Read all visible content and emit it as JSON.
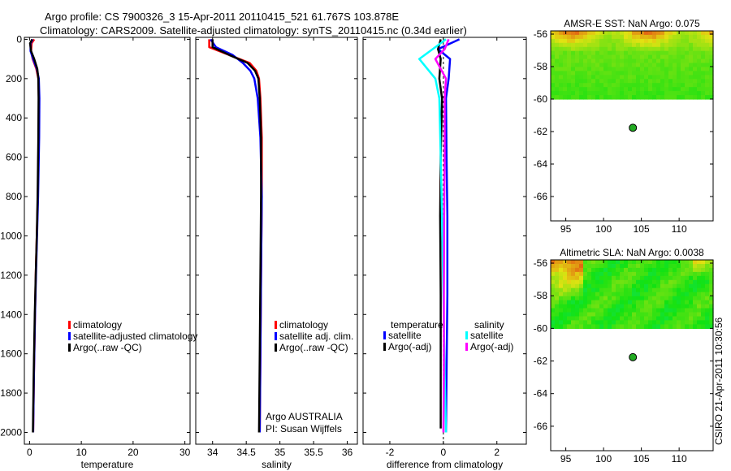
{
  "header": {
    "line1": "Argo profile: CS 7900326_3 15-Apr-2011 20110415_521 61.767S 103.878E",
    "line2": "Climatology: CARS2009. Satellite-adjusted climatology: synTS_20110415.nc (0.34d earlier)"
  },
  "side_label": "CSIRO 21-Apr-2011 10:30:56",
  "colors": {
    "climatology": "#ff0000",
    "satellite": "#0000ff",
    "argo": "#000000",
    "sal_satellite": "#00ffff",
    "sal_argo": "#ff00ff",
    "marker": "#22aa22"
  },
  "chart_data": [
    {
      "id": "temperature-panel",
      "type": "line",
      "xlabel": "temperature",
      "ylabel": "",
      "xlim": [
        -1,
        31
      ],
      "ylim": [
        2060,
        -10
      ],
      "xticks": [
        0,
        10,
        20,
        30
      ],
      "yticks": [
        0,
        200,
        400,
        600,
        800,
        1000,
        1200,
        1400,
        1600,
        1800,
        2000
      ],
      "legend": [
        "climatology",
        "satellite-adjusted climatology",
        "Argo(..raw -QC)"
      ],
      "series": [
        {
          "name": "climatology",
          "color": "#ff0000",
          "x": [
            0.9,
            0.4,
            0.3,
            0.6,
            1.3,
            1.7,
            1.8,
            1.75,
            1.6,
            1.4,
            1.2,
            1.05,
            0.85,
            0.7
          ],
          "y": [
            0,
            20,
            60,
            100,
            150,
            200,
            300,
            500,
            800,
            1000,
            1200,
            1400,
            1700,
            2000
          ]
        },
        {
          "name": "satellite-adjusted climatology",
          "color": "#0000ff",
          "x": [
            0.6,
            0.2,
            0.2,
            0.7,
            1.4,
            1.8,
            1.9,
            1.85,
            1.65,
            1.45,
            1.25,
            1.05,
            0.85,
            0.7
          ],
          "y": [
            0,
            20,
            60,
            100,
            150,
            200,
            300,
            500,
            800,
            1000,
            1200,
            1400,
            1700,
            2000
          ]
        },
        {
          "name": "Argo(..raw -QC)",
          "color": "#000000",
          "x": [
            0.5,
            0.1,
            0.3,
            0.9,
            1.5,
            1.7,
            1.75,
            1.7,
            1.55,
            1.4,
            1.2,
            1.0,
            0.8,
            0.65
          ],
          "y": [
            0,
            20,
            60,
            100,
            150,
            200,
            300,
            500,
            800,
            1000,
            1200,
            1400,
            1700,
            2000
          ]
        }
      ]
    },
    {
      "id": "salinity-panel",
      "type": "line",
      "xlabel": "salinity",
      "xlim": [
        33.75,
        36.15
      ],
      "ylim": [
        2060,
        -10
      ],
      "xticks": [
        34,
        34.5,
        35,
        35.5,
        36
      ],
      "legend": [
        "climatology",
        "satellite adj. clim.",
        "Argo(..raw -QC)"
      ],
      "annotation": [
        "Argo AUSTRALIA",
        "PI: Susan Wijffels"
      ],
      "series": [
        {
          "name": "climatology",
          "color": "#ff0000",
          "x": [
            33.95,
            33.95,
            34.25,
            34.55,
            34.65,
            34.69,
            34.71,
            34.73,
            34.73,
            34.72,
            34.71,
            34.7
          ],
          "y": [
            0,
            40,
            80,
            120,
            160,
            200,
            300,
            500,
            800,
            1200,
            1600,
            2000
          ]
        },
        {
          "name": "satellite adj. clim.",
          "color": "#0000ff",
          "x": [
            33.97,
            34.05,
            34.3,
            34.45,
            34.56,
            34.62,
            34.67,
            34.71,
            34.73,
            34.72,
            34.71,
            34.7
          ],
          "y": [
            0,
            40,
            80,
            120,
            160,
            200,
            300,
            500,
            800,
            1200,
            1600,
            2000
          ]
        },
        {
          "name": "Argo(..raw -QC)",
          "color": "#000000",
          "x": [
            34.0,
            34.0,
            34.25,
            34.52,
            34.63,
            34.68,
            34.7,
            34.72,
            34.72,
            34.71,
            34.7,
            34.69
          ],
          "y": [
            0,
            40,
            80,
            120,
            160,
            200,
            300,
            500,
            800,
            1200,
            1600,
            2000
          ]
        }
      ]
    },
    {
      "id": "difference-panel",
      "type": "line",
      "xlabel": "difference from climatology",
      "xlim": [
        -3,
        3.1
      ],
      "ylim": [
        2060,
        -10
      ],
      "xticks": [
        -2,
        0,
        2
      ],
      "legend_headers": [
        "temperature",
        "salinity"
      ],
      "legend": [
        "satellite",
        "Argo(-adj)",
        "satellite",
        "Argo(-adj)"
      ],
      "series": [
        {
          "name": "temperature satellite",
          "color": "#0000ff",
          "x": [
            0.6,
            -0.2,
            0.25,
            0.2,
            0.1,
            0.12,
            0.15,
            0.15,
            0.12,
            0.1
          ],
          "y": [
            0,
            50,
            100,
            200,
            300,
            600,
            900,
            1300,
            1700,
            2000
          ]
        },
        {
          "name": "temperature Argo(-adj)",
          "color": "#000000",
          "x": [
            -0.1,
            -0.2,
            -0.1,
            -0.15,
            -0.05,
            -0.1,
            -0.12,
            -0.1,
            -0.1,
            -0.1
          ],
          "y": [
            0,
            50,
            100,
            200,
            300,
            600,
            900,
            1300,
            1700,
            1980
          ]
        },
        {
          "name": "salinity satellite",
          "color": "#00ffff",
          "x": [
            0.1,
            -0.4,
            -0.9,
            -0.3,
            -0.15,
            -0.1,
            -0.05,
            0.0,
            0.05,
            0.1
          ],
          "y": [
            0,
            50,
            100,
            200,
            300,
            600,
            900,
            1300,
            1700,
            2000
          ]
        },
        {
          "name": "salinity Argo(-adj)",
          "color": "#ff00ff",
          "x": [
            0.2,
            0.05,
            -0.3,
            0.1,
            0.05,
            0.05,
            0.03,
            0.02,
            0.02,
            0.0
          ],
          "y": [
            0,
            50,
            100,
            200,
            300,
            600,
            900,
            1300,
            1700,
            2000
          ]
        }
      ]
    },
    {
      "id": "sst-map",
      "type": "heatmap",
      "title": "AMSR-E SST: NaN Argo: 0.075",
      "xlim": [
        93,
        114.5
      ],
      "ylim": [
        -67.5,
        -55.8
      ],
      "xticks": [
        95,
        100,
        105,
        110
      ],
      "yticks": [
        -56,
        -58,
        -60,
        -62,
        -64,
        -66
      ],
      "field_lat_range": [
        -60,
        -55.8
      ],
      "marker": {
        "lon": 103.878,
        "lat": -61.767
      }
    },
    {
      "id": "sla-map",
      "type": "heatmap",
      "title": "Altimetric SLA: NaN Argo: 0.0038",
      "xlim": [
        93,
        114.5
      ],
      "ylim": [
        -67.5,
        -55.8
      ],
      "xticks": [
        95,
        100,
        105,
        110
      ],
      "yticks": [
        -56,
        -58,
        -60,
        -62,
        -64,
        -66
      ],
      "field_lat_range": [
        -60,
        -55.8
      ],
      "marker": {
        "lon": 103.878,
        "lat": -61.767
      }
    }
  ]
}
